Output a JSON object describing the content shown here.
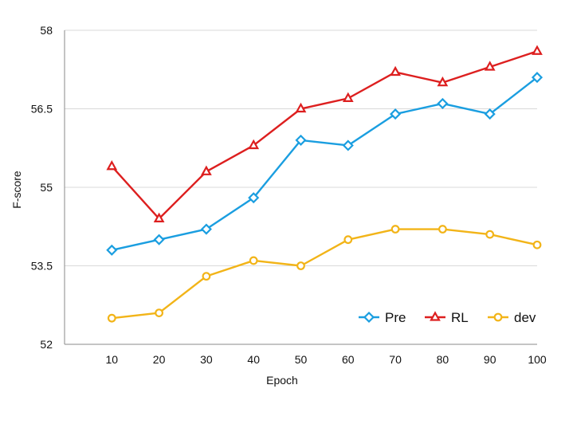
{
  "chart_data": {
    "type": "line",
    "xlabel": "Epoch",
    "ylabel": "F-score",
    "x": [
      10,
      20,
      30,
      40,
      50,
      60,
      70,
      80,
      90,
      100
    ],
    "xlim": [
      0,
      100
    ],
    "ylim": [
      52,
      58
    ],
    "yticks": [
      52,
      53.5,
      55,
      56.5,
      58
    ],
    "yticklabels": [
      "52",
      "53.5",
      "55",
      "56.5",
      "58"
    ],
    "grid": "horizontal",
    "legend_position": "bottom-right",
    "series": [
      {
        "name": "Pre",
        "color": "#1a9ee0",
        "marker": "diamond",
        "values": [
          53.8,
          54.0,
          54.2,
          54.8,
          55.9,
          55.8,
          56.4,
          56.6,
          56.4,
          57.1
        ]
      },
      {
        "name": "RL",
        "color": "#dd1f1f",
        "marker": "triangle",
        "values": [
          55.4,
          54.4,
          55.3,
          55.8,
          56.5,
          56.7,
          57.2,
          57.0,
          57.3,
          57.6
        ]
      },
      {
        "name": "dev",
        "color": "#f2b418",
        "marker": "circle",
        "values": [
          52.5,
          52.6,
          53.3,
          53.6,
          53.5,
          54.0,
          54.2,
          54.2,
          54.1,
          53.9
        ]
      }
    ]
  }
}
